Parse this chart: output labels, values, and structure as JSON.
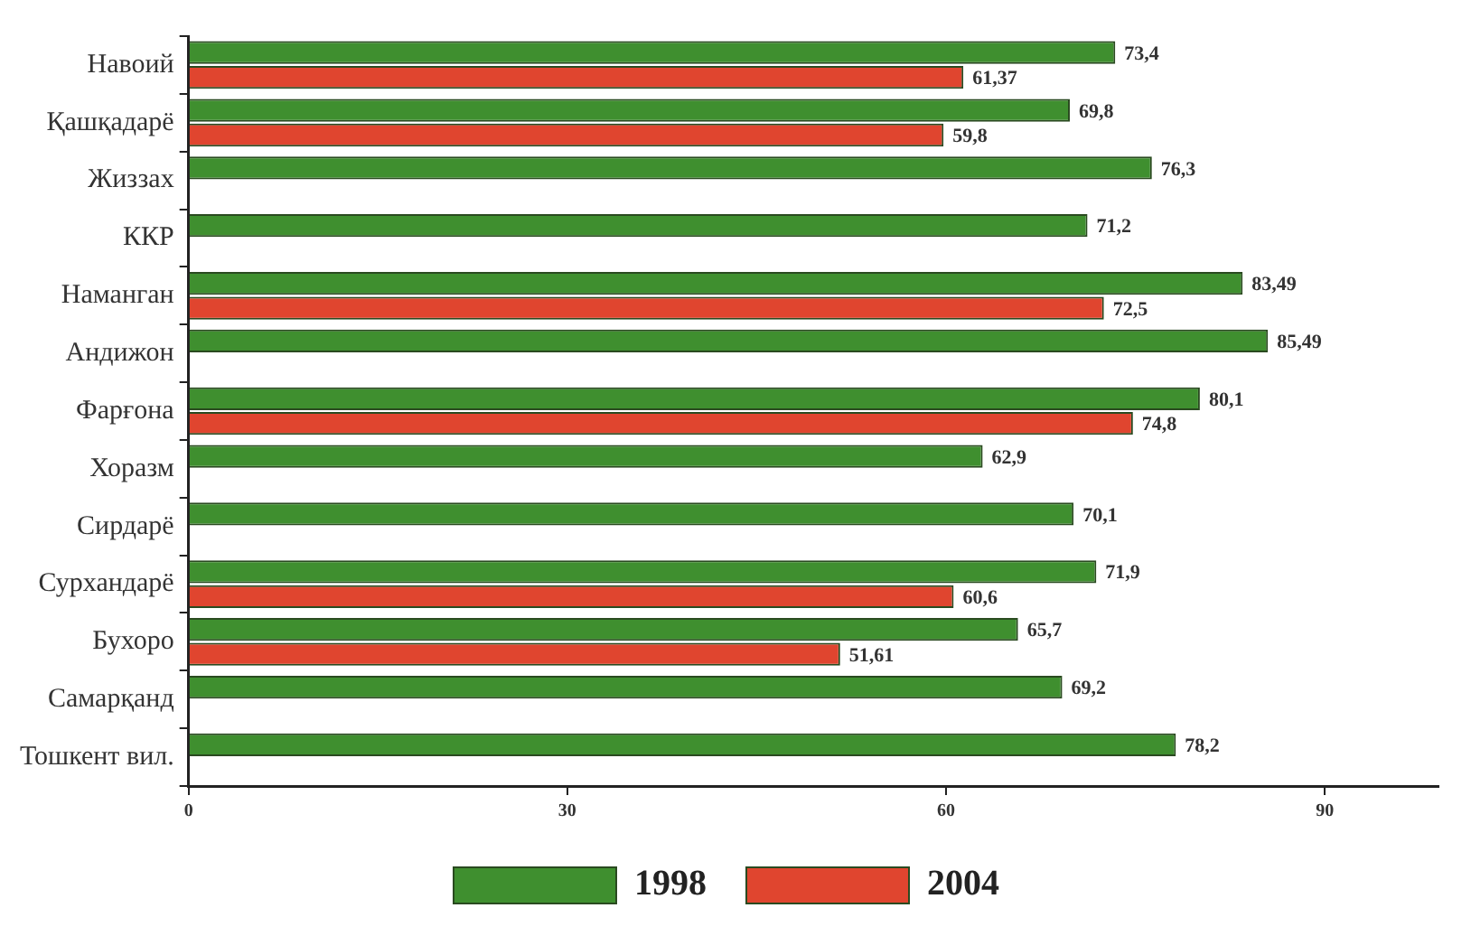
{
  "chart_data": {
    "type": "bar",
    "orientation": "horizontal",
    "categories": [
      "Навоий",
      "Қашқадарё",
      "Жиззах",
      "ККР",
      "Наманган",
      "Андижон",
      "Фарғона",
      "Хоразм",
      "Сирдарё",
      "Сурхандарё",
      "Бухоро",
      "Самарқанд",
      "Тошкент вил."
    ],
    "series": [
      {
        "name": "1998",
        "color": "#3f8f2f",
        "values": [
          73.4,
          69.8,
          76.3,
          71.2,
          83.49,
          85.49,
          80.1,
          62.9,
          70.1,
          71.9,
          65.7,
          69.2,
          78.2
        ],
        "value_labels": [
          "73,4",
          "69,8",
          "76,3",
          "71,2",
          "83,49",
          "85,49",
          "80,1",
          "62,9",
          "70,1",
          "71,9",
          "65,7",
          "69,2",
          "78,2"
        ]
      },
      {
        "name": "2004",
        "color": "#e0452f",
        "values": [
          61.37,
          59.8,
          null,
          null,
          72.5,
          null,
          74.8,
          null,
          null,
          60.6,
          51.61,
          null,
          null
        ],
        "value_labels": [
          "61,37",
          "59,8",
          null,
          null,
          "72,5",
          null,
          "74,8",
          null,
          null,
          "60,6",
          "51,61",
          null,
          null
        ]
      }
    ],
    "xlim": [
      0,
      99
    ],
    "xticks": [
      0,
      30,
      60,
      90
    ],
    "grid": false,
    "legend": "bottom"
  }
}
